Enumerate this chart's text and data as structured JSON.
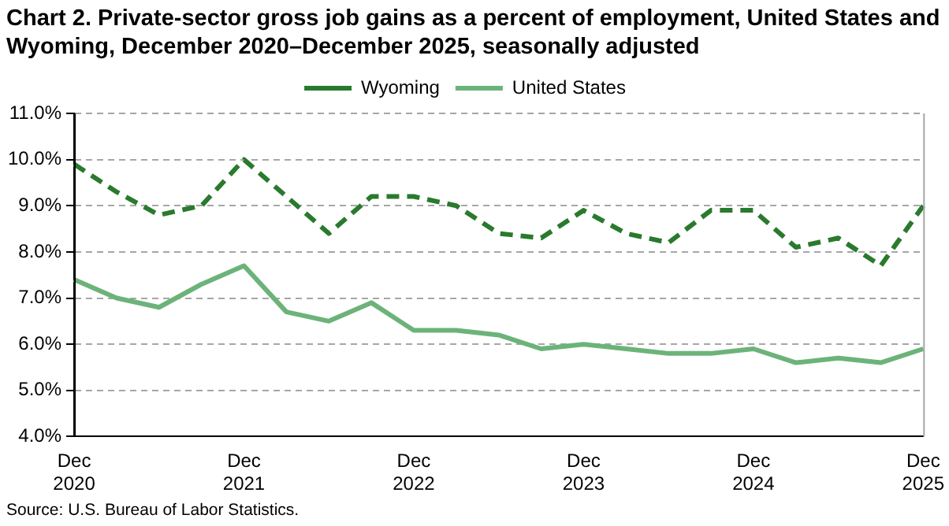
{
  "chart_data": {
    "type": "line",
    "title": "Chart 2. Private-sector gross job gains as a percent of employment, United States and Wyoming,  December 2020–December 2025, seasonally adjusted",
    "categories": [
      "Dec 2020",
      null,
      null,
      null,
      "Dec 2021",
      null,
      null,
      null,
      "Dec 2022",
      null,
      null,
      null,
      "Dec 2023",
      null,
      null,
      null,
      "Dec 2024",
      null,
      null,
      null,
      "Dec 2025"
    ],
    "series": [
      {
        "name": "Wyoming",
        "color": "#2a7a2e",
        "line_style": "dashed",
        "values": [
          9.9,
          9.3,
          8.8,
          9.0,
          10.0,
          9.2,
          8.4,
          9.2,
          9.2,
          9.0,
          8.4,
          8.3,
          8.9,
          8.4,
          8.2,
          8.9,
          8.9,
          8.1,
          8.3,
          7.7,
          9.0
        ]
      },
      {
        "name": "United States",
        "color": "#6cb37a",
        "line_style": "solid",
        "values": [
          7.4,
          7.0,
          6.8,
          7.3,
          7.7,
          6.7,
          6.5,
          6.9,
          6.3,
          6.3,
          6.2,
          5.9,
          6.0,
          5.9,
          5.8,
          5.8,
          5.9,
          5.6,
          5.7,
          5.6,
          5.9
        ]
      }
    ],
    "ylim": [
      4,
      11
    ],
    "yticks": [
      {
        "value": 4,
        "label": "4.0%"
      },
      {
        "value": 5,
        "label": "5.0%"
      },
      {
        "value": 6,
        "label": "6.0%"
      },
      {
        "value": 7,
        "label": "7.0%"
      },
      {
        "value": 8,
        "label": "8.0%"
      },
      {
        "value": 9,
        "label": "9.0%"
      },
      {
        "value": 10,
        "label": "10.0%"
      },
      {
        "value": 11,
        "label": "11.0%"
      }
    ],
    "grid": "y",
    "legend": "top",
    "marker": "none",
    "annotations": [
      "Source: U.S. Bureau of Labor Statistics."
    ]
  }
}
